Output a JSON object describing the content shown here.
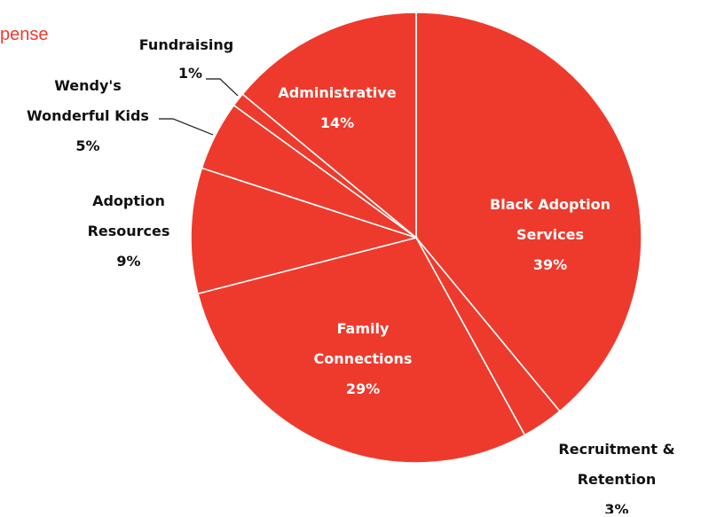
{
  "title_fragment": "pense",
  "chart_data": {
    "type": "pie",
    "start_angle_deg": 0,
    "direction": "clockwise",
    "slice_color": "#ee3a2c",
    "separator_color": "#ffffff",
    "slices": [
      {
        "label": "Black Adoption Services",
        "lines": [
          "Black Adoption",
          "Services"
        ],
        "value": 39,
        "value_label": "39%",
        "label_position": "inside"
      },
      {
        "label": "Recruitment & Retention",
        "lines": [
          "Recruitment &",
          "Retention"
        ],
        "value": 3,
        "value_label": "3%",
        "label_position": "outside"
      },
      {
        "label": "Family Connections",
        "lines": [
          "Family",
          "Connections"
        ],
        "value": 29,
        "value_label": "29%",
        "label_position": "inside"
      },
      {
        "label": "Adoption Resources",
        "lines": [
          "Adoption",
          "Resources"
        ],
        "value": 9,
        "value_label": "9%",
        "label_position": "outside"
      },
      {
        "label": "Wendy's Wonderful Kids",
        "lines": [
          "Wendy's",
          "Wonderful Kids"
        ],
        "value": 5,
        "value_label": "5%",
        "label_position": "outside"
      },
      {
        "label": "Fundraising",
        "lines": [
          "Fundraising"
        ],
        "value": 1,
        "value_label": "1%",
        "label_position": "outside",
        "inline_value": true
      },
      {
        "label": "Administrative",
        "lines": [
          "Administrative"
        ],
        "value": 14,
        "value_label": "14%",
        "label_position": "inside"
      }
    ]
  }
}
